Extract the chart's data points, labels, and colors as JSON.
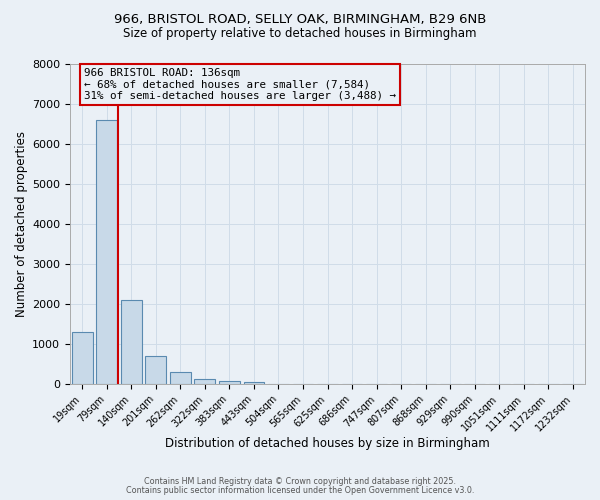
{
  "title1": "966, BRISTOL ROAD, SELLY OAK, BIRMINGHAM, B29 6NB",
  "title2": "Size of property relative to detached houses in Birmingham",
  "xlabel": "Distribution of detached houses by size in Birmingham",
  "ylabel": "Number of detached properties",
  "bin_labels": [
    "19sqm",
    "79sqm",
    "140sqm",
    "201sqm",
    "262sqm",
    "322sqm",
    "383sqm",
    "443sqm",
    "504sqm",
    "565sqm",
    "625sqm",
    "686sqm",
    "747sqm",
    "807sqm",
    "868sqm",
    "929sqm",
    "990sqm",
    "1051sqm",
    "1111sqm",
    "1172sqm",
    "1232sqm"
  ],
  "bar_heights": [
    1300,
    6600,
    2100,
    700,
    300,
    130,
    60,
    40,
    0,
    0,
    0,
    0,
    0,
    0,
    0,
    0,
    0,
    0,
    0,
    0,
    0
  ],
  "bar_color": "#c8d9e8",
  "bar_edge_color": "#5a8ab0",
  "grid_color": "#d0dce8",
  "background_color": "#eaf0f6",
  "vline_color": "#cc0000",
  "vline_position": 1.45,
  "annotation_line1": "966 BRISTOL ROAD: 136sqm",
  "annotation_line2": "← 68% of detached houses are smaller (7,584)",
  "annotation_line3": "31% of semi-detached houses are larger (3,488) →",
  "ann_box_edge_color": "#cc0000",
  "ylim_max": 8000,
  "yticks": [
    0,
    1000,
    2000,
    3000,
    4000,
    5000,
    6000,
    7000,
    8000
  ],
  "footnote1": "Contains HM Land Registry data © Crown copyright and database right 2025.",
  "footnote2": "Contains public sector information licensed under the Open Government Licence v3.0."
}
